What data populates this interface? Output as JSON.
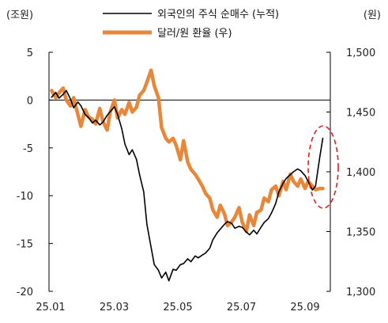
{
  "chart_data": {
    "type": "line",
    "left_axis_unit": "(조원)",
    "right_axis_unit": "(원)",
    "x_ticks": [
      "25.01",
      "25.03",
      "25.05",
      "25.07",
      "25.09"
    ],
    "ylim_left": [
      -20,
      5
    ],
    "y_ticks_left": [
      "5",
      "0",
      "-5",
      "-10",
      "-15",
      "-20"
    ],
    "ylim_right": [
      1300,
      1500
    ],
    "y_ticks_right": [
      "1,500",
      "1,450",
      "1,400",
      "1,350",
      "1,300"
    ],
    "legend_position": "top-center",
    "series": [
      {
        "name": "외국인의 주식 순매수 (누적)",
        "axis": "left",
        "color": "#000000",
        "x": [
          "2025-01-02",
          "2025-01-06",
          "2025-01-09",
          "2025-01-13",
          "2025-01-16",
          "2025-01-20",
          "2025-01-23",
          "2025-01-27",
          "2025-01-30",
          "2025-02-03",
          "2025-02-06",
          "2025-02-10",
          "2025-02-13",
          "2025-02-17",
          "2025-02-20",
          "2025-02-24",
          "2025-02-27",
          "2025-03-03",
          "2025-03-06",
          "2025-03-10",
          "2025-03-13",
          "2025-03-17",
          "2025-03-20",
          "2025-03-24",
          "2025-03-27",
          "2025-03-31",
          "2025-04-03",
          "2025-04-07",
          "2025-04-10",
          "2025-04-14",
          "2025-04-17",
          "2025-04-21",
          "2025-04-24",
          "2025-04-28",
          "2025-05-01",
          "2025-05-05",
          "2025-05-08",
          "2025-05-12",
          "2025-05-15",
          "2025-05-19",
          "2025-05-22",
          "2025-05-26",
          "2025-05-29",
          "2025-06-02",
          "2025-06-05",
          "2025-06-09",
          "2025-06-12",
          "2025-06-16",
          "2025-06-19",
          "2025-06-23",
          "2025-06-26",
          "2025-06-30",
          "2025-07-03",
          "2025-07-07",
          "2025-07-10",
          "2025-07-14",
          "2025-07-17",
          "2025-07-21",
          "2025-07-24",
          "2025-07-28",
          "2025-07-31",
          "2025-08-04",
          "2025-08-07",
          "2025-08-11",
          "2025-08-14",
          "2025-08-18",
          "2025-08-21",
          "2025-08-25",
          "2025-08-28",
          "2025-09-01",
          "2025-09-04",
          "2025-09-08",
          "2025-09-11",
          "2025-09-15",
          "2025-09-18"
        ],
        "values": [
          0.3,
          0.8,
          0.2,
          0.6,
          1.0,
          0.1,
          -0.8,
          -0.2,
          -0.6,
          -1.5,
          -1.8,
          -2.4,
          -2.1,
          -2.6,
          -2.3,
          -1.6,
          -1.2,
          -0.7,
          -1.5,
          -3.0,
          -4.6,
          -5.7,
          -5.2,
          -6.2,
          -7.8,
          -9.6,
          -13.0,
          -15.4,
          -17.2,
          -17.8,
          -18.6,
          -18.0,
          -18.9,
          -17.7,
          -17.8,
          -17.2,
          -17.1,
          -16.6,
          -16.9,
          -16.3,
          -16.5,
          -16.2,
          -16.0,
          -15.5,
          -14.6,
          -13.9,
          -13.5,
          -13.0,
          -12.7,
          -12.9,
          -13.4,
          -13.2,
          -13.3,
          -13.8,
          -14.1,
          -13.6,
          -14.0,
          -13.3,
          -12.8,
          -12.4,
          -11.8,
          -10.8,
          -9.6,
          -8.7,
          -8.2,
          -7.8,
          -7.5,
          -7.2,
          -7.4,
          -7.9,
          -8.5,
          -9.4,
          -9.0,
          -6.0,
          -4.0
        ]
      },
      {
        "name": "달러/원 환율 (우)",
        "axis": "right",
        "color": "#E8873A",
        "x": [
          "2025-01-02",
          "2025-01-06",
          "2025-01-09",
          "2025-01-13",
          "2025-01-16",
          "2025-01-20",
          "2025-01-23",
          "2025-01-27",
          "2025-01-30",
          "2025-02-03",
          "2025-02-06",
          "2025-02-10",
          "2025-02-13",
          "2025-02-17",
          "2025-02-20",
          "2025-02-24",
          "2025-02-27",
          "2025-03-03",
          "2025-03-06",
          "2025-03-10",
          "2025-03-13",
          "2025-03-17",
          "2025-03-20",
          "2025-03-24",
          "2025-03-27",
          "2025-03-31",
          "2025-04-03",
          "2025-04-07",
          "2025-04-10",
          "2025-04-14",
          "2025-04-17",
          "2025-04-21",
          "2025-04-24",
          "2025-04-28",
          "2025-05-01",
          "2025-05-05",
          "2025-05-08",
          "2025-05-12",
          "2025-05-15",
          "2025-05-19",
          "2025-05-22",
          "2025-05-26",
          "2025-05-29",
          "2025-06-02",
          "2025-06-05",
          "2025-06-09",
          "2025-06-12",
          "2025-06-16",
          "2025-06-19",
          "2025-06-23",
          "2025-06-26",
          "2025-06-30",
          "2025-07-03",
          "2025-07-07",
          "2025-07-10",
          "2025-07-14",
          "2025-07-17",
          "2025-07-21",
          "2025-07-24",
          "2025-07-28",
          "2025-07-31",
          "2025-08-04",
          "2025-08-07",
          "2025-08-11",
          "2025-08-14",
          "2025-08-18",
          "2025-08-21",
          "2025-08-25",
          "2025-08-28",
          "2025-09-01",
          "2025-09-04",
          "2025-09-08",
          "2025-09-11",
          "2025-09-15",
          "2025-09-18"
        ],
        "values": [
          1468,
          1462,
          1466,
          1470,
          1460,
          1455,
          1462,
          1448,
          1438,
          1452,
          1446,
          1444,
          1440,
          1453,
          1442,
          1435,
          1450,
          1460,
          1445,
          1452,
          1448,
          1458,
          1450,
          1454,
          1464,
          1468,
          1475,
          1485,
          1472,
          1462,
          1437,
          1428,
          1425,
          1428,
          1422,
          1410,
          1426,
          1408,
          1402,
          1398,
          1394,
          1388,
          1382,
          1378,
          1368,
          1362,
          1372,
          1365,
          1355,
          1358,
          1362,
          1370,
          1358,
          1350,
          1364,
          1355,
          1366,
          1368,
          1378,
          1375,
          1385,
          1388,
          1380,
          1392,
          1385,
          1398,
          1392,
          1388,
          1394,
          1386,
          1392,
          1388,
          1385,
          1386,
          1386
        ]
      }
    ]
  }
}
